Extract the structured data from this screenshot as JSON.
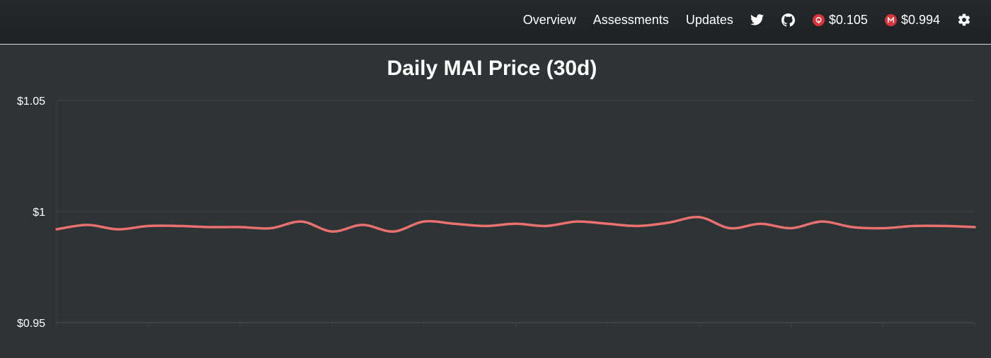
{
  "nav": {
    "links": [
      "Overview",
      "Assessments",
      "Updates"
    ],
    "icons": [
      "twitter-icon",
      "github-icon",
      "settings-icon"
    ],
    "prices": [
      {
        "token": "QI",
        "value": "$0.105",
        "badge_color": "#d8343c"
      },
      {
        "token": "MAI",
        "value": "$0.994",
        "badge_color": "#d8343c"
      }
    ]
  },
  "chart_data": {
    "type": "line",
    "title": "Daily MAI Price (30d)",
    "xlabel": "",
    "ylabel": "",
    "ylim": [
      0.95,
      1.05
    ],
    "yticks": [
      {
        "value": 1.05,
        "label": "$1.05"
      },
      {
        "value": 1.0,
        "label": "$1"
      },
      {
        "value": 0.95,
        "label": "$0.95"
      }
    ],
    "grid": true,
    "x": [
      1,
      2,
      3,
      4,
      5,
      6,
      7,
      8,
      9,
      10,
      11,
      12,
      13,
      14,
      15,
      16,
      17,
      18,
      19,
      20,
      21,
      22,
      23,
      24,
      25,
      26,
      27,
      28,
      29,
      30,
      31
    ],
    "series": [
      {
        "color": "#e8706f",
        "values": [
          0.992,
          0.994,
          0.992,
          0.9935,
          0.9935,
          0.993,
          0.993,
          0.9925,
          0.9955,
          0.991,
          0.994,
          0.991,
          0.9955,
          0.9945,
          0.9935,
          0.9945,
          0.9935,
          0.9955,
          0.9945,
          0.9935,
          0.995,
          0.9975,
          0.9925,
          0.9945,
          0.9925,
          0.9955,
          0.993,
          0.9925,
          0.9935,
          0.9935,
          0.993
        ]
      }
    ]
  }
}
